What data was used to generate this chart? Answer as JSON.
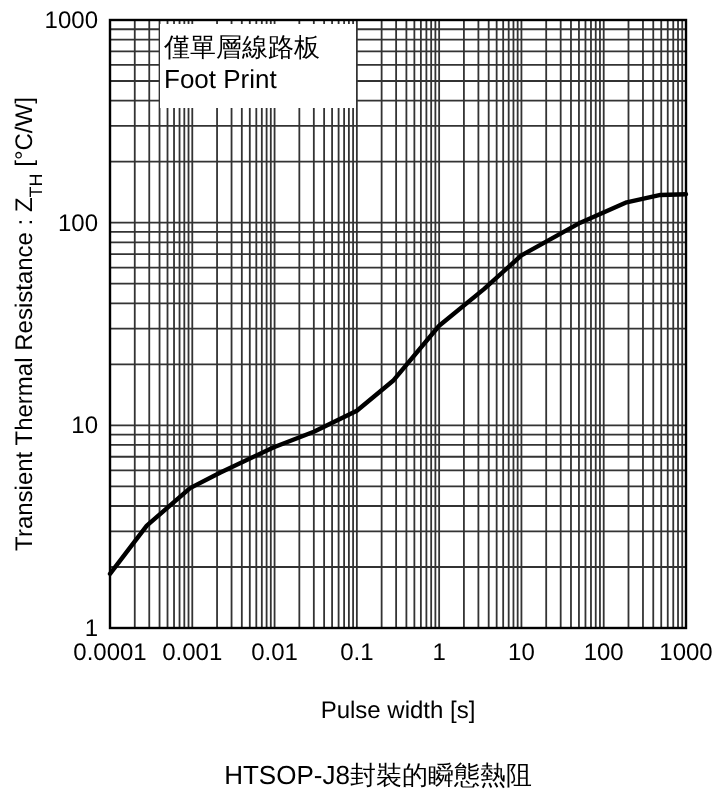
{
  "chart_data": {
    "type": "line",
    "title": "HTSOP-J8封裝的瞬態熱阻",
    "xlabel": "Pulse width [s]",
    "ylabel": "Transient Thermal Resistance : Z$_{TH}$ [°C/W]",
    "annotations": [
      "僅單層線路板",
      "Foot Print"
    ],
    "x": [
      0.0001,
      0.00028,
      0.00094,
      0.0022,
      0.0098,
      0.03,
      0.1,
      0.28,
      1,
      3.5,
      10,
      52,
      190,
      490,
      1000
    ],
    "values": [
      1.85,
      3.2,
      4.9,
      5.85,
      7.8,
      9.3,
      11.8,
      16.7,
      31,
      47,
      69,
      100,
      126,
      137,
      138
    ],
    "color": "#000000",
    "log": "xy",
    "grid": true,
    "xlim": [
      0.0001,
      1000
    ],
    "ylim": [
      1,
      1000
    ],
    "xticks": [
      0.0001,
      0.001,
      0.01,
      0.1,
      1,
      10,
      100,
      1000
    ],
    "yticks": [
      1,
      10,
      100,
      1000
    ]
  }
}
